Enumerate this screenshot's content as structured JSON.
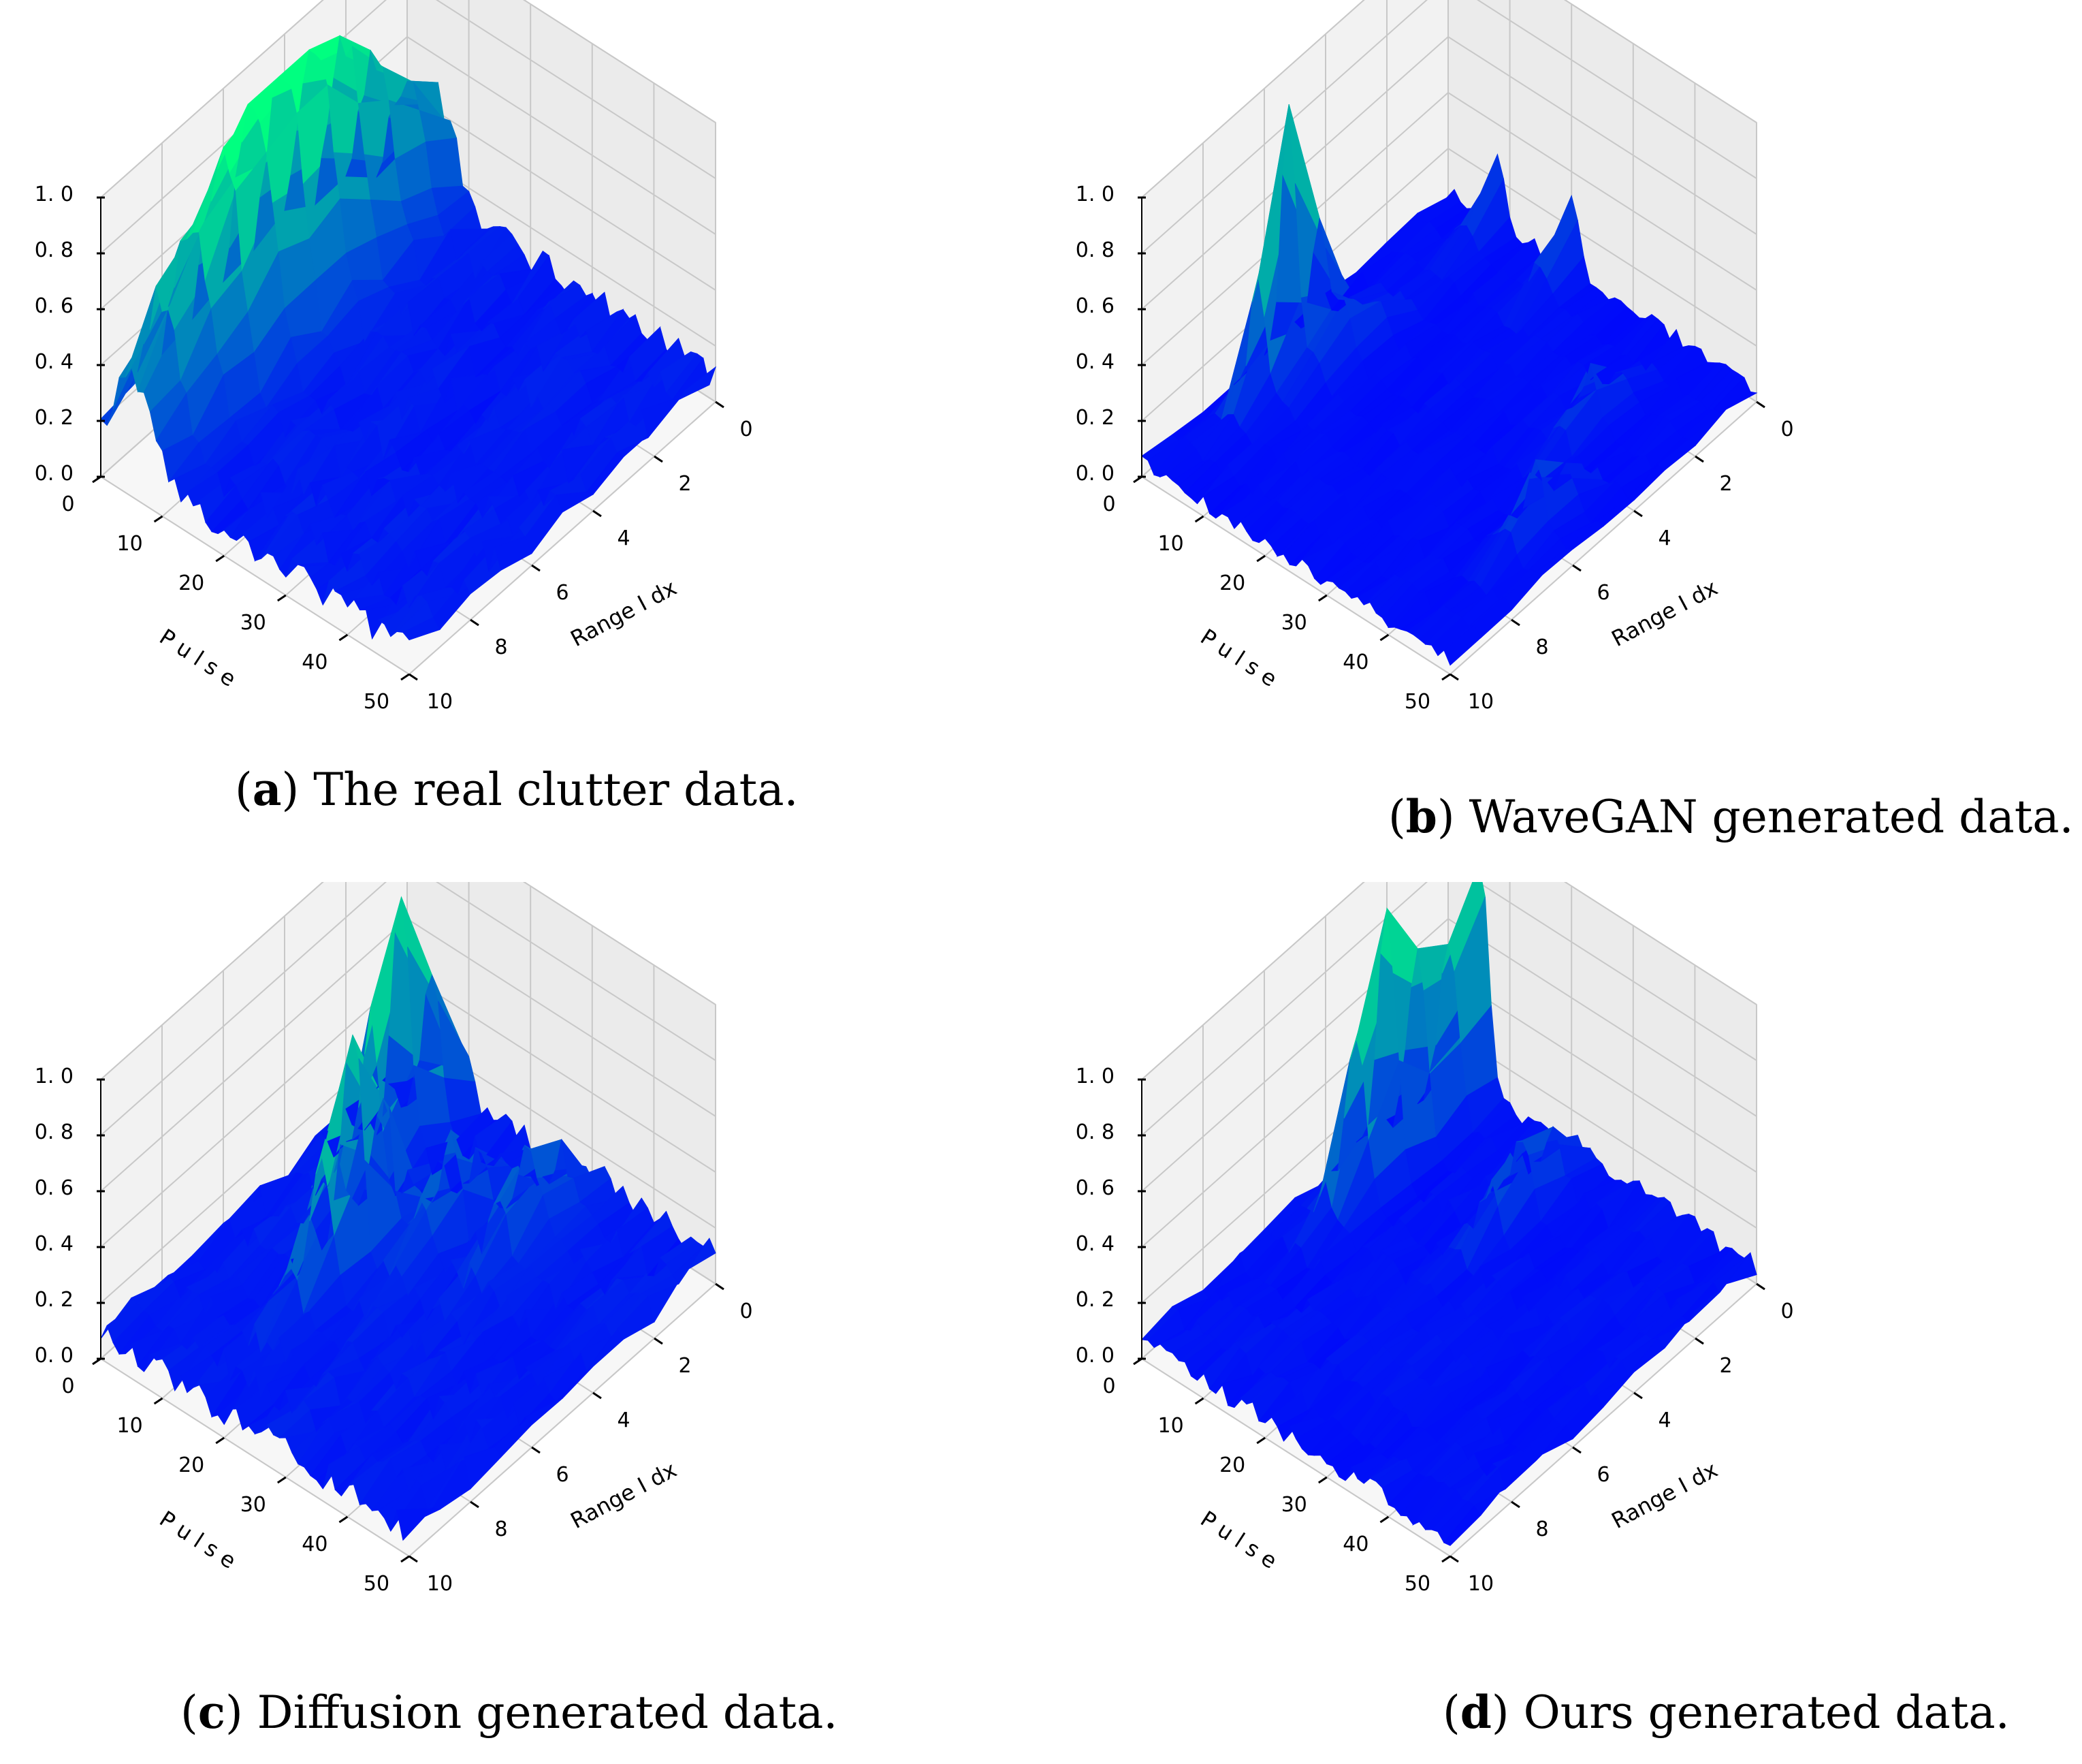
{
  "figure": {
    "panels": [
      {
        "letter": "a",
        "caption": "The real clutter data."
      },
      {
        "letter": "b",
        "caption": "WaveGAN generated data."
      },
      {
        "letter": "c",
        "caption": "Diffusion generated data."
      },
      {
        "letter": "d",
        "caption": "Ours generated data."
      }
    ]
  },
  "chart_data": [
    {
      "type": "surface3d",
      "title": "The real clutter data.",
      "xlabel": "Pulse",
      "ylabel": "RangeIdx",
      "zlabel": "",
      "xlim": [
        0,
        50
      ],
      "ylim": [
        0,
        10
      ],
      "zlim": [
        0,
        1.0
      ],
      "xticks": [
        "0",
        "10",
        "20",
        "30",
        "40",
        "50"
      ],
      "yticks": [
        "0",
        "2",
        "4",
        "6",
        "8",
        "10"
      ],
      "zticks": [
        "0.0",
        "0.2",
        "0.4",
        "0.6",
        "0.8",
        "1.0"
      ],
      "colormap": "winter",
      "peaks": [
        {
          "pulse": 5,
          "range": 5,
          "height": 1.0,
          "width_pulse": 3,
          "width_range": 3.5
        }
      ],
      "background_level": 0.12
    },
    {
      "type": "surface3d",
      "title": "WaveGAN generated data.",
      "xlabel": "Pulse",
      "ylabel": "RangeIdx",
      "zlabel": "",
      "xlim": [
        0,
        50
      ],
      "ylim": [
        0,
        10
      ],
      "zlim": [
        0,
        1.0
      ],
      "xticks": [
        "0",
        "10",
        "20",
        "30",
        "40",
        "50"
      ],
      "yticks": [
        "0",
        "2",
        "4",
        "6",
        "8",
        "10"
      ],
      "zticks": [
        "0.0",
        "0.2",
        "0.4",
        "0.6",
        "0.8",
        "1.0"
      ],
      "colormap": "winter",
      "peaks": [
        {
          "pulse": 4,
          "range": 6,
          "height": 0.97,
          "width_pulse": 1.2,
          "width_range": 0.8
        },
        {
          "pulse": 8,
          "range": 5,
          "height": 0.22,
          "width_pulse": 1.5,
          "width_range": 1
        },
        {
          "pulse": 8,
          "range": 0,
          "height": 0.24,
          "width_pulse": 1.2,
          "width_range": 0.8
        },
        {
          "pulse": 20,
          "range": 0,
          "height": 0.26,
          "width_pulse": 1.2,
          "width_range": 0.8
        },
        {
          "pulse": 38,
          "range": 3,
          "height": 0.2,
          "width_pulse": 1.2,
          "width_range": 0.8
        },
        {
          "pulse": 44,
          "range": 6,
          "height": 0.24,
          "width_pulse": 1.2,
          "width_range": 0.8
        }
      ],
      "background_level": 0.06
    },
    {
      "type": "surface3d",
      "title": "Diffusion generated data.",
      "xlabel": "Pulse",
      "ylabel": "RangeIdx",
      "zlabel": "",
      "xlim": [
        0,
        50
      ],
      "ylim": [
        0,
        10
      ],
      "zlim": [
        0,
        1.0
      ],
      "xticks": [
        "0",
        "10",
        "20",
        "30",
        "40",
        "50"
      ],
      "yticks": [
        "0",
        "2",
        "4",
        "6",
        "8",
        "10"
      ],
      "zticks": [
        "0.0",
        "0.2",
        "0.4",
        "0.6",
        "0.8",
        "1.0"
      ],
      "colormap": "winter",
      "peaks": [
        {
          "pulse": 9,
          "range": 2,
          "height": 0.92,
          "width_pulse": 1.5,
          "width_range": 1
        },
        {
          "pulse": 16,
          "range": 5,
          "height": 0.85,
          "width_pulse": 1.5,
          "width_range": 1
        },
        {
          "pulse": 22,
          "range": 3,
          "height": 0.3,
          "width_pulse": 1.5,
          "width_range": 1
        },
        {
          "pulse": 30,
          "range": 2,
          "height": 0.32,
          "width_pulse": 1.5,
          "width_range": 1
        }
      ],
      "background_level": 0.12
    },
    {
      "type": "surface3d",
      "title": "Ours generated data.",
      "xlabel": "Pulse",
      "ylabel": "RangeIdx",
      "zlabel": "",
      "xlim": [
        0,
        50
      ],
      "ylim": [
        0,
        10
      ],
      "zlim": [
        0,
        1.0
      ],
      "xticks": [
        "0",
        "10",
        "20",
        "30",
        "40",
        "50"
      ],
      "yticks": [
        "0",
        "2",
        "4",
        "6",
        "8",
        "10"
      ],
      "zticks": [
        "0.0",
        "0.2",
        "0.4",
        "0.6",
        "0.8",
        "1.0"
      ],
      "colormap": "winter",
      "peaks": [
        {
          "pulse": 5,
          "range": 3,
          "height": 0.93,
          "width_pulse": 1.5,
          "width_range": 1
        },
        {
          "pulse": 5,
          "range": 0,
          "height": 0.82,
          "width_pulse": 1.5,
          "width_range": 1
        },
        {
          "pulse": 22,
          "range": 2,
          "height": 0.28,
          "width_pulse": 1.5,
          "width_range": 1
        }
      ],
      "background_level": 0.08
    }
  ]
}
